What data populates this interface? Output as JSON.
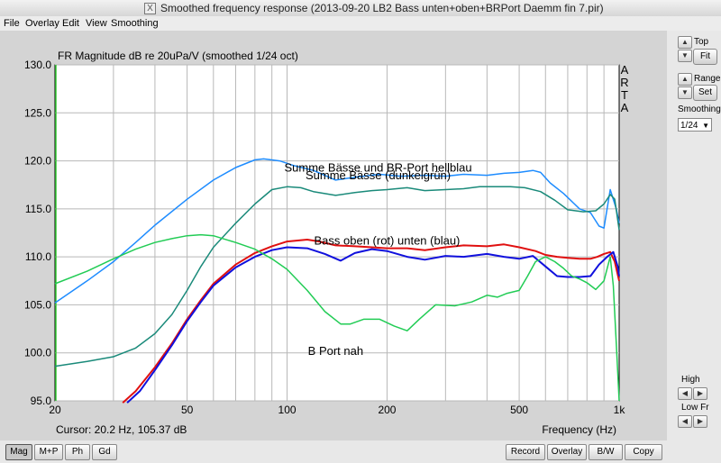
{
  "window": {
    "title": "Smoothed frequency response (2013-09-20 LB2 Bass unten+oben+BRPort Daemm fin 7.pir)",
    "icon": "x11-app-icon"
  },
  "menu": {
    "items": [
      {
        "label": "File"
      },
      {
        "label": "Overlay"
      },
      {
        "label": "Edit"
      },
      {
        "label": "View"
      },
      {
        "label": "Smoothing"
      }
    ]
  },
  "plot": {
    "header": "FR Magnitude dB re 20uPa/V (smoothed 1/24 oct)",
    "brand": [
      "A",
      "R",
      "T",
      "A"
    ],
    "cursor_text": "Cursor: 20.2 Hz, 105.37 dB",
    "x_axis_title": "Frequency (Hz)",
    "annotations": [
      {
        "text": "Summe Bässe und BR-Port hellblau",
        "x": 188,
        "y": 118.9
      },
      {
        "text": "Summe Bässe (dunkelgrün)",
        "x": 188,
        "y": 118.1
      },
      {
        "text": "Bass oben (rot) unten (blau)",
        "x": 200,
        "y": 111.3
      },
      {
        "text": "B Port nah",
        "x": 140,
        "y": 99.8
      }
    ]
  },
  "chart_data": {
    "type": "line",
    "x_scale": "log",
    "xlim": [
      20,
      1000
    ],
    "ylim": [
      95,
      130
    ],
    "x_ticks": [
      20,
      50,
      100,
      200,
      500,
      1000
    ],
    "x_tick_labels": [
      "20",
      "50",
      "100",
      "200",
      "500",
      "1k"
    ],
    "y_ticks": [
      95,
      100,
      105,
      110,
      115,
      120,
      125,
      130
    ],
    "y_tick_labels": [
      "95.0",
      "100.0",
      "105.0",
      "110.0",
      "115.0",
      "120.0",
      "125.0",
      "130.0"
    ],
    "grid": true,
    "series": [
      {
        "color": "#1e8cff",
        "points": [
          [
            20,
            105.2
          ],
          [
            25,
            107.5
          ],
          [
            30,
            109.5
          ],
          [
            35,
            111.5
          ],
          [
            40,
            113.3
          ],
          [
            50,
            116
          ],
          [
            60,
            118
          ],
          [
            70,
            119.3
          ],
          [
            80,
            120.1
          ],
          [
            85,
            120.2
          ],
          [
            95,
            120
          ],
          [
            105,
            119.5
          ],
          [
            120,
            119
          ],
          [
            140,
            118
          ],
          [
            160,
            118.3
          ],
          [
            190,
            118.6
          ],
          [
            220,
            118.4
          ],
          [
            260,
            118.5
          ],
          [
            300,
            118.4
          ],
          [
            340,
            118.6
          ],
          [
            400,
            118.5
          ],
          [
            450,
            118.7
          ],
          [
            500,
            118.8
          ],
          [
            550,
            119.0
          ],
          [
            580,
            118.8
          ],
          [
            620,
            117.7
          ],
          [
            680,
            116.6
          ],
          [
            760,
            115.0
          ],
          [
            820,
            114.6
          ],
          [
            870,
            113.2
          ],
          [
            900,
            113
          ],
          [
            940,
            117.0
          ],
          [
            980,
            115.0
          ],
          [
            1000,
            113.5
          ]
        ]
      },
      {
        "color": "#1a8a7a",
        "points": [
          [
            20,
            98.6
          ],
          [
            25,
            99.1
          ],
          [
            30,
            99.6
          ],
          [
            35,
            100.5
          ],
          [
            40,
            102
          ],
          [
            45,
            104
          ],
          [
            50,
            106.5
          ],
          [
            55,
            109
          ],
          [
            60,
            111
          ],
          [
            70,
            113.5
          ],
          [
            80,
            115.5
          ],
          [
            90,
            117
          ],
          [
            100,
            117.3
          ],
          [
            110,
            117.2
          ],
          [
            120,
            116.8
          ],
          [
            140,
            116.4
          ],
          [
            160,
            116.7
          ],
          [
            180,
            116.9
          ],
          [
            200,
            117.0
          ],
          [
            230,
            117.2
          ],
          [
            260,
            116.9
          ],
          [
            300,
            117.0
          ],
          [
            340,
            117.1
          ],
          [
            380,
            117.3
          ],
          [
            420,
            117.3
          ],
          [
            470,
            117.3
          ],
          [
            520,
            117.2
          ],
          [
            580,
            116.8
          ],
          [
            640,
            115.9
          ],
          [
            700,
            114.9
          ],
          [
            780,
            114.7
          ],
          [
            850,
            114.8
          ],
          [
            900,
            115.5
          ],
          [
            940,
            116.5
          ],
          [
            970,
            116.0
          ],
          [
            1000,
            112.8
          ]
        ]
      },
      {
        "color": "#e01010",
        "points": [
          [
            32,
            94.8
          ],
          [
            35,
            96
          ],
          [
            40,
            98.5
          ],
          [
            45,
            101
          ],
          [
            50,
            103.5
          ],
          [
            55,
            105.5
          ],
          [
            60,
            107.2
          ],
          [
            70,
            109.2
          ],
          [
            80,
            110.4
          ],
          [
            90,
            111.1
          ],
          [
            100,
            111.6
          ],
          [
            115,
            111.8
          ],
          [
            125,
            111.6
          ],
          [
            140,
            111.2
          ],
          [
            160,
            111.1
          ],
          [
            180,
            111.0
          ],
          [
            200,
            110.9
          ],
          [
            230,
            110.9
          ],
          [
            260,
            110.7
          ],
          [
            300,
            111.0
          ],
          [
            340,
            111.2
          ],
          [
            400,
            111.1
          ],
          [
            450,
            111.3
          ],
          [
            500,
            111.0
          ],
          [
            560,
            110.6
          ],
          [
            600,
            110.2
          ],
          [
            650,
            110.0
          ],
          [
            700,
            109.9
          ],
          [
            760,
            109.8
          ],
          [
            820,
            109.8
          ],
          [
            860,
            110.0
          ],
          [
            900,
            110.3
          ],
          [
            940,
            110.5
          ],
          [
            970,
            109.5
          ],
          [
            1000,
            107.5
          ]
        ]
      },
      {
        "color": "#1010dd",
        "points": [
          [
            33,
            94.8
          ],
          [
            36,
            96
          ],
          [
            40,
            98.2
          ],
          [
            45,
            100.8
          ],
          [
            50,
            103.3
          ],
          [
            55,
            105.3
          ],
          [
            60,
            107
          ],
          [
            70,
            108.9
          ],
          [
            80,
            110.0
          ],
          [
            90,
            110.7
          ],
          [
            100,
            111.0
          ],
          [
            115,
            110.9
          ],
          [
            130,
            110.3
          ],
          [
            145,
            109.6
          ],
          [
            160,
            110.4
          ],
          [
            180,
            110.8
          ],
          [
            200,
            110.6
          ],
          [
            230,
            110.0
          ],
          [
            260,
            109.7
          ],
          [
            300,
            110.1
          ],
          [
            340,
            110.0
          ],
          [
            400,
            110.3
          ],
          [
            450,
            110.0
          ],
          [
            500,
            109.8
          ],
          [
            550,
            110.1
          ],
          [
            600,
            109.0
          ],
          [
            650,
            108.0
          ],
          [
            700,
            107.9
          ],
          [
            760,
            107.9
          ],
          [
            820,
            108.0
          ],
          [
            870,
            109.2
          ],
          [
            920,
            110.0
          ],
          [
            960,
            110.5
          ],
          [
            990,
            109.0
          ],
          [
            1000,
            108.0
          ]
        ]
      },
      {
        "color": "#22cc55",
        "points": [
          [
            20,
            107.2
          ],
          [
            25,
            108.5
          ],
          [
            30,
            109.8
          ],
          [
            35,
            110.8
          ],
          [
            40,
            111.5
          ],
          [
            45,
            111.9
          ],
          [
            50,
            112.2
          ],
          [
            55,
            112.3
          ],
          [
            60,
            112.2
          ],
          [
            70,
            111.5
          ],
          [
            80,
            110.8
          ],
          [
            90,
            109.8
          ],
          [
            100,
            108.7
          ],
          [
            115,
            106.5
          ],
          [
            130,
            104.3
          ],
          [
            145,
            103.0
          ],
          [
            155,
            103.0
          ],
          [
            170,
            103.5
          ],
          [
            190,
            103.5
          ],
          [
            210,
            102.8
          ],
          [
            230,
            102.3
          ],
          [
            250,
            103.5
          ],
          [
            280,
            105.0
          ],
          [
            320,
            104.9
          ],
          [
            360,
            105.3
          ],
          [
            400,
            106.0
          ],
          [
            430,
            105.8
          ],
          [
            460,
            106.2
          ],
          [
            500,
            106.5
          ],
          [
            530,
            108.0
          ],
          [
            560,
            109.5
          ],
          [
            600,
            110.0
          ],
          [
            640,
            109.5
          ],
          [
            680,
            108.8
          ],
          [
            720,
            108.0
          ],
          [
            760,
            107.7
          ],
          [
            800,
            107.3
          ],
          [
            850,
            106.6
          ],
          [
            900,
            107.5
          ],
          [
            940,
            110.0
          ],
          [
            960,
            107.0
          ],
          [
            980,
            101.0
          ],
          [
            1000,
            95.0
          ]
        ]
      }
    ]
  },
  "right_panel": {
    "top_label": "Top",
    "fit_label": "Fit",
    "range_label": "Range",
    "set_label": "Set",
    "smoothing_label": "Smoothing",
    "smoothing_value": "1/24",
    "high_label": "High",
    "lowfr_label": "Low Fr"
  },
  "bottom_bar": {
    "tabs": [
      "Mag",
      "M+P",
      "Ph",
      "Gd"
    ],
    "buttons": [
      "Record",
      "Overlay",
      "B/W",
      "Copy"
    ]
  }
}
